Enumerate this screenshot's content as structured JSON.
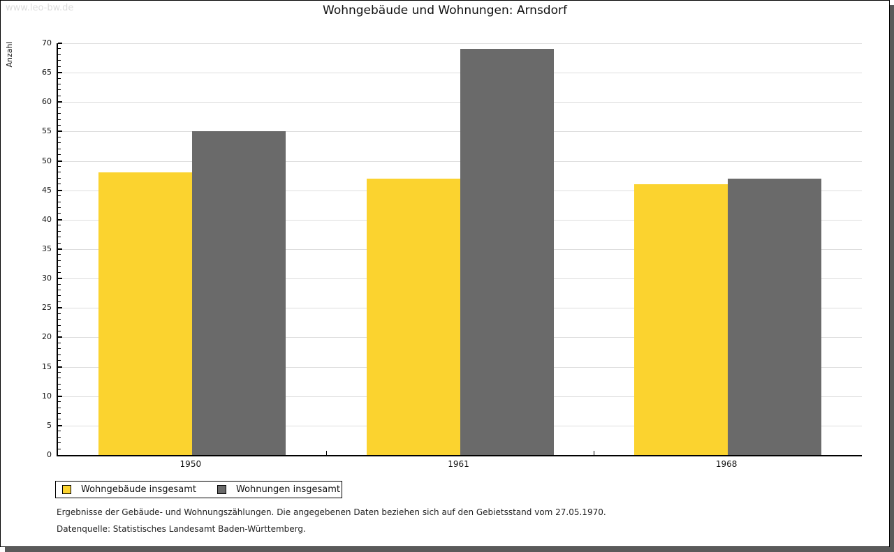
{
  "watermark": "www.leo-bw.de",
  "title": "Wohngebäude und Wohnungen: Arnsdorf",
  "chart_data": {
    "type": "bar",
    "title": "Wohngebäude und Wohnungen: Arnsdorf",
    "categories": [
      "1950",
      "1961",
      "1968"
    ],
    "series": [
      {
        "name": "Wohngebäude insgesamt",
        "color": "#fbd32f",
        "values": [
          48,
          47,
          46
        ]
      },
      {
        "name": "Wohnungen insgesamt",
        "color": "#6a6a6a",
        "values": [
          55,
          69,
          47
        ]
      }
    ],
    "ylabel": "Anzahl",
    "xlabel": "",
    "ylim": [
      0,
      70
    ],
    "ytick_major": 5,
    "ytick_minor": 1,
    "grid": true,
    "legend_position": "bottom-left"
  },
  "footer": {
    "line1": "Ergebnisse der Gebäude- und Wohnungszählungen. Die angegebenen Daten beziehen sich auf den Gebietsstand vom 27.05.1970.",
    "line2": "Datenquelle: Statistisches Landesamt Baden-Württemberg."
  },
  "colors": {
    "bar_yellow": "#fbd32f",
    "bar_gray": "#6a6a6a",
    "gridline": "#dddddd",
    "shadow": "#5a5a5a",
    "watermark_text": "#dcdcdc"
  }
}
